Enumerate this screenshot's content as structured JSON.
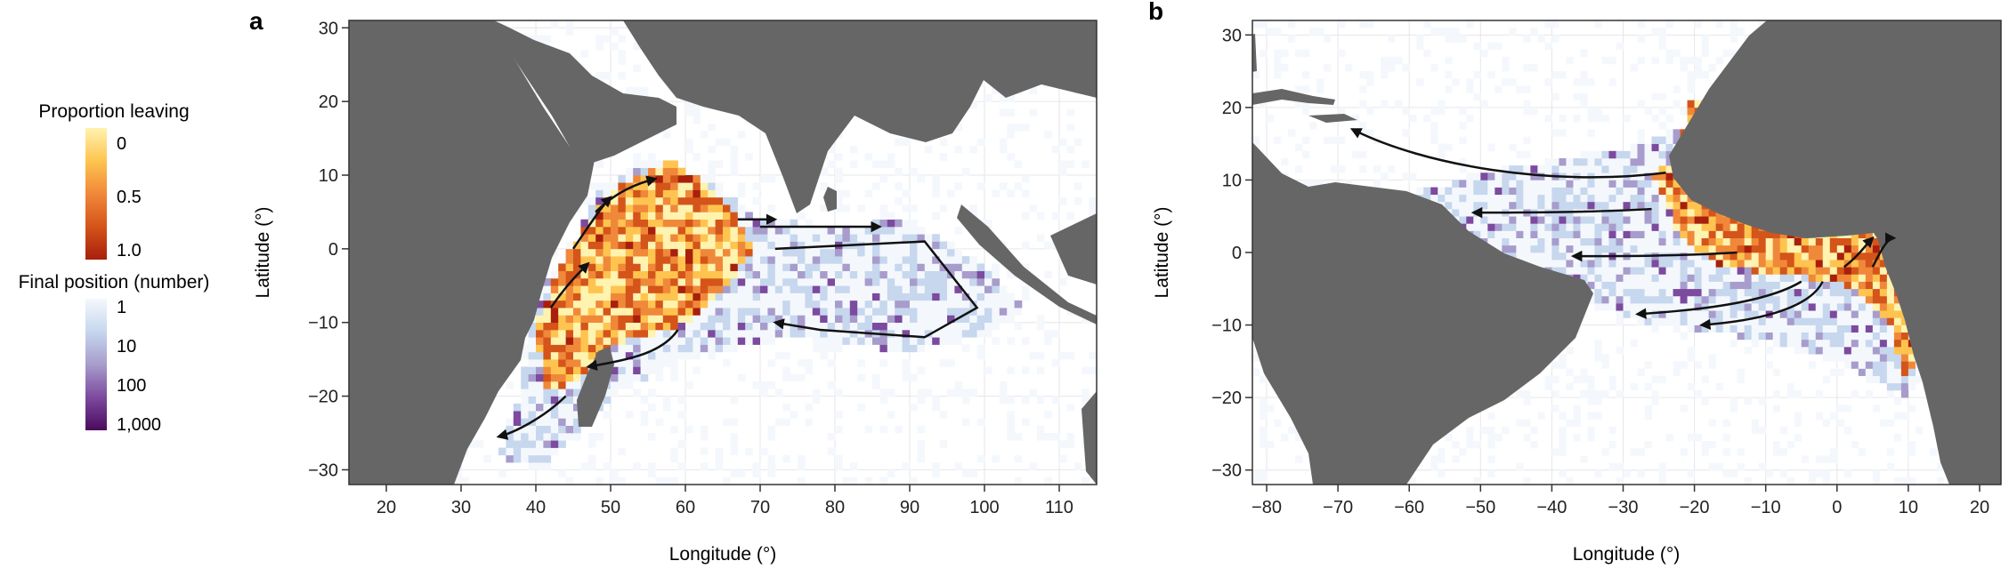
{
  "colors": {
    "land": "#666666",
    "ocean": "#ffffff",
    "grid": "#e6e6ea",
    "frame": "#333333",
    "arrow": "#111111",
    "leaving_scale": [
      "#fff3b0",
      "#fec44f",
      "#f0883a",
      "#d4541a",
      "#a81f0c"
    ],
    "final_scale": [
      "#f4f8fc",
      "#c6d7ee",
      "#a79ccc",
      "#7c4a9e",
      "#4b0a5e"
    ]
  },
  "legend": {
    "leaving": {
      "title": "Proportion leaving",
      "ticks": [
        "0",
        "0.5",
        "1.0"
      ]
    },
    "final": {
      "title": "Final position (number)",
      "ticks": [
        "1",
        "10",
        "100",
        "1,000"
      ]
    }
  },
  "chart_data": [
    {
      "panel": "a",
      "type": "heatmap",
      "xlabel": "Longitude (°)",
      "ylabel": "Latitude (°)",
      "xlim": [
        15,
        115
      ],
      "ylim": [
        -32,
        31
      ],
      "xticks": [
        "20",
        "30",
        "40",
        "50",
        "60",
        "70",
        "80",
        "90",
        "100",
        "110"
      ],
      "xtick_values": [
        20,
        30,
        40,
        50,
        60,
        70,
        80,
        90,
        100,
        110
      ],
      "yticks": [
        "30",
        "20",
        "10",
        "0",
        "−10",
        "−20",
        "−30"
      ],
      "ytick_values": [
        30,
        20,
        10,
        0,
        -10,
        -20,
        -30
      ],
      "grid": true,
      "leaving_region": [
        [
          41,
          -8
        ],
        [
          44,
          -1
        ],
        [
          48,
          5
        ],
        [
          52,
          9
        ],
        [
          58,
          12
        ],
        [
          63,
          9
        ],
        [
          67,
          4
        ],
        [
          69,
          0
        ],
        [
          66,
          -5
        ],
        [
          60,
          -10
        ],
        [
          55,
          -12
        ],
        [
          50,
          -13
        ],
        [
          47,
          -17
        ],
        [
          43,
          -19
        ],
        [
          42,
          -20
        ],
        [
          41,
          -17
        ],
        [
          40,
          -10
        ]
      ],
      "final_region": [
        [
          40,
          -6
        ],
        [
          45,
          0
        ],
        [
          48,
          8
        ],
        [
          55,
          12
        ],
        [
          62,
          10
        ],
        [
          70,
          4
        ],
        [
          80,
          3
        ],
        [
          90,
          4
        ],
        [
          100,
          -2
        ],
        [
          105,
          -8
        ],
        [
          100,
          -12
        ],
        [
          90,
          -14
        ],
        [
          75,
          -12
        ],
        [
          60,
          -15
        ],
        [
          50,
          -20
        ],
        [
          45,
          -26
        ],
        [
          40,
          -30
        ],
        [
          35,
          -28
        ],
        [
          38,
          -20
        ]
      ],
      "arrows": [
        {
          "path": [
            [
              59,
              -11
            ],
            [
              57,
              -14
            ],
            [
              53,
              -15
            ],
            [
              47,
              -16
            ]
          ]
        },
        {
          "path": [
            [
              44,
              -20
            ],
            [
              41,
              -23
            ],
            [
              37,
              -25
            ],
            [
              35,
              -25.5
            ]
          ]
        },
        {
          "path": [
            [
              42,
              -8
            ],
            [
              44,
              -5
            ],
            [
              46,
              -3
            ],
            [
              47,
              -2
            ]
          ]
        },
        {
          "path": [
            [
              45,
              0
            ],
            [
              47,
              3
            ],
            [
              49,
              6
            ],
            [
              50,
              7
            ]
          ]
        },
        {
          "path": [
            [
              48,
              5
            ],
            [
              51,
              8
            ],
            [
              54,
              9
            ],
            [
              56,
              9.5
            ]
          ]
        },
        {
          "path": [
            [
              67,
              4
            ],
            [
              69,
              4
            ],
            [
              71,
              4
            ],
            [
              72,
              4
            ]
          ]
        },
        {
          "path": [
            [
              70,
              3
            ],
            [
              76,
              3
            ],
            [
              82,
              3
            ],
            [
              86,
              3
            ]
          ]
        },
        {
          "path": [
            [
              72,
              0
            ],
            [
              92,
              1
            ],
            [
              99,
              -8
            ],
            [
              92,
              -12
            ],
            [
              78,
              -11
            ],
            [
              72,
              -10
            ]
          ]
        }
      ]
    },
    {
      "panel": "b",
      "type": "heatmap",
      "xlabel": "Longitude (°)",
      "ylabel": "Latitude (°)",
      "xlim": [
        -82,
        23
      ],
      "ylim": [
        -32,
        32
      ],
      "xticks": [
        "−80",
        "−70",
        "−60",
        "−50",
        "−40",
        "−30",
        "−20",
        "−10",
        "0",
        "10",
        "20"
      ],
      "xtick_values": [
        -80,
        -70,
        -60,
        -50,
        -40,
        -30,
        -20,
        -10,
        0,
        10,
        20
      ],
      "yticks": [
        "30",
        "20",
        "10",
        "0",
        "−10",
        "−20",
        "−30"
      ],
      "ytick_values": [
        30,
        20,
        10,
        0,
        -10,
        -20,
        -30
      ],
      "grid": true,
      "leaving_region": [
        [
          -26,
          11
        ],
        [
          -22,
          13
        ],
        [
          -21,
          21
        ],
        [
          -18,
          21
        ],
        [
          -16,
          15
        ],
        [
          -12,
          10
        ],
        [
          -6,
          8
        ],
        [
          2,
          5
        ],
        [
          6,
          5
        ],
        [
          8,
          3
        ],
        [
          11,
          2
        ],
        [
          12,
          -2
        ],
        [
          14,
          -8
        ],
        [
          13,
          -12
        ],
        [
          11,
          -15
        ],
        [
          9,
          -18
        ],
        [
          8,
          -10
        ],
        [
          4,
          -6
        ],
        [
          0,
          -4
        ],
        [
          -8,
          -3
        ],
        [
          -16,
          -2
        ],
        [
          -22,
          2
        ],
        [
          -24,
          7
        ]
      ],
      "final_region": [
        [
          -60,
          8
        ],
        [
          -45,
          12
        ],
        [
          -30,
          14
        ],
        [
          -20,
          18
        ],
        [
          -15,
          12
        ],
        [
          -5,
          8
        ],
        [
          8,
          6
        ],
        [
          12,
          0
        ],
        [
          14,
          -10
        ],
        [
          10,
          -20
        ],
        [
          0,
          -15
        ],
        [
          -10,
          -12
        ],
        [
          -25,
          -10
        ],
        [
          -40,
          -6
        ],
        [
          -50,
          -2
        ],
        [
          -58,
          3
        ]
      ],
      "arrows": [
        {
          "path": [
            [
              -24,
              11
            ],
            [
              -40,
              9
            ],
            [
              -58,
              12
            ],
            [
              -68,
              17
            ]
          ]
        },
        {
          "path": [
            [
              -26,
              6
            ],
            [
              -35,
              5.5
            ],
            [
              -45,
              5.5
            ],
            [
              -51,
              5.5
            ]
          ]
        },
        {
          "path": [
            [
              -14,
              0
            ],
            [
              -22,
              -0.5
            ],
            [
              -30,
              -0.5
            ],
            [
              -37,
              -0.5
            ]
          ]
        },
        {
          "path": [
            [
              -5,
              -4
            ],
            [
              -10,
              -7
            ],
            [
              -20,
              -8
            ],
            [
              -28,
              -8.5
            ]
          ]
        },
        {
          "path": [
            [
              -2,
              -4
            ],
            [
              -4,
              -8
            ],
            [
              -12,
              -9.5
            ],
            [
              -19,
              -10
            ]
          ]
        },
        {
          "path": [
            [
              1,
              -2
            ],
            [
              3,
              -0.5
            ],
            [
              4,
              1
            ],
            [
              5,
              2
            ]
          ]
        },
        {
          "path": [
            [
              5,
              -2
            ],
            [
              6,
              0
            ],
            [
              7,
              2
            ],
            [
              8,
              2
            ]
          ]
        }
      ]
    }
  ]
}
